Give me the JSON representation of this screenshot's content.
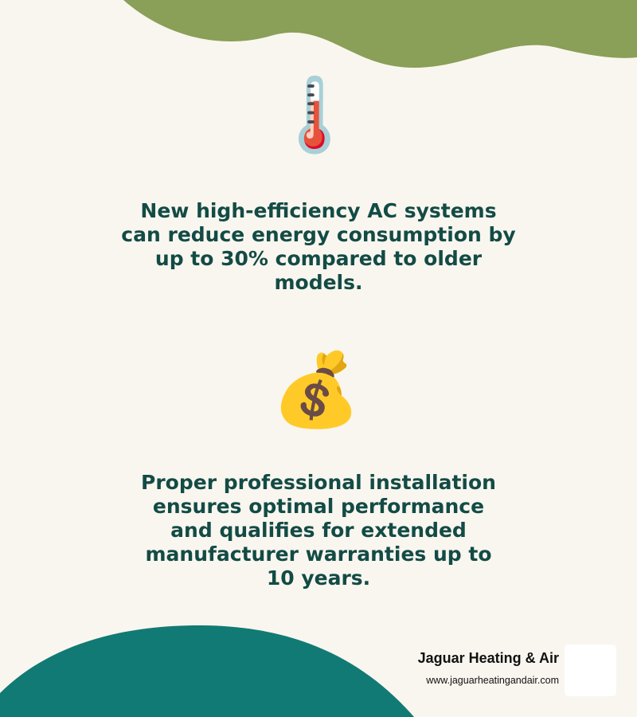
{
  "colors": {
    "background": "#f9f6ef",
    "top_wave": "#8a9f57",
    "bottom_arc": "#117a74",
    "text": "#134b45"
  },
  "facts": [
    {
      "icon": "thermometer-icon",
      "glyph": "🌡️",
      "text": "New high-efficiency AC systems can reduce energy consumption by up to 30% compared to older models."
    },
    {
      "icon": "money-bag-icon",
      "glyph": "💰",
      "text": "Proper professional installation ensures optimal performance and qualifies for extended manufacturer warranties up to 10 years."
    }
  ],
  "brand": {
    "name": "Jaguar Heating & Air",
    "url": "www.jaguarheatingandair.com"
  }
}
